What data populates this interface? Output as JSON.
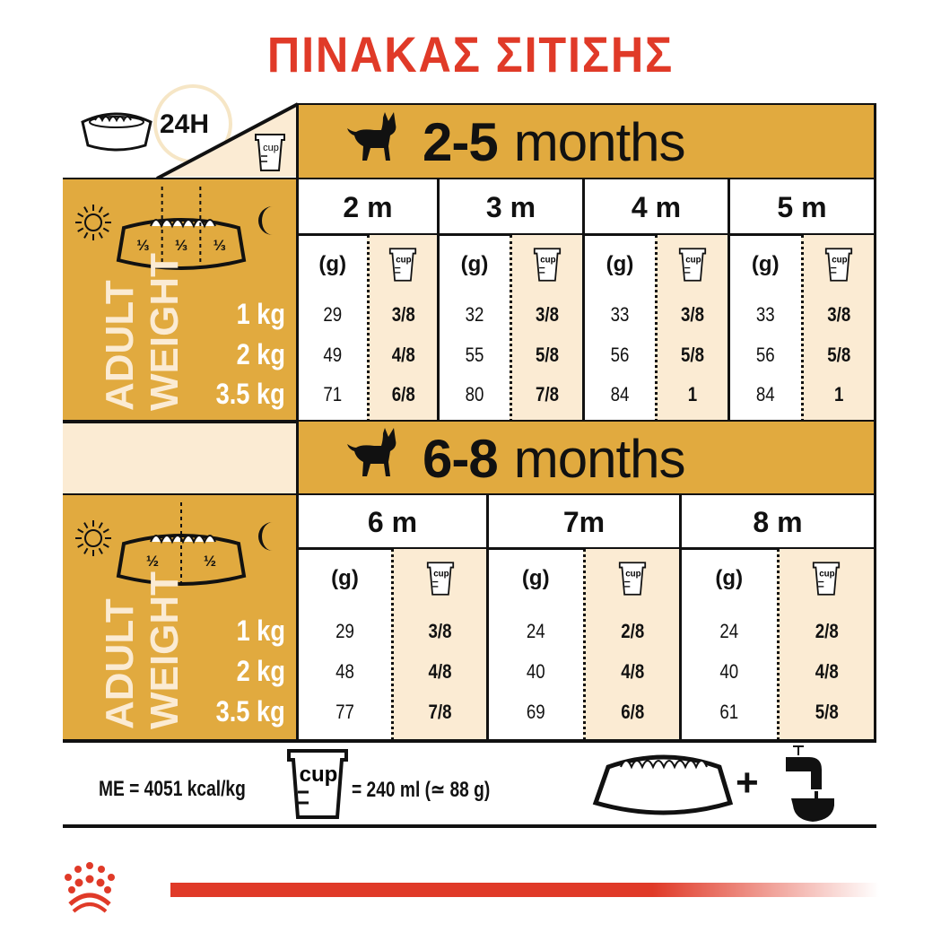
{
  "title": "ΠΙΝΑΚΑΣ ΣΙΤΙΣΗΣ",
  "colors": {
    "brand_red": "#E03A28",
    "gold": "#E1AA3F",
    "cream": "#FBEBD3"
  },
  "corner": {
    "label": "24H",
    "cup_icon_text": "cup"
  },
  "unit_grams": "(g)",
  "weight_axis": {
    "line1": "ADULT",
    "line2": "WEIGHT",
    "weights": [
      "1 kg",
      "2 kg",
      "3.5 kg"
    ]
  },
  "sections": [
    {
      "title_num": "2-5",
      "title_word": "months",
      "bowl_split": [
        "⅓",
        "⅓",
        "⅓"
      ],
      "columns": [
        {
          "label": "2 m",
          "grams": [
            "29",
            "49",
            "71"
          ],
          "cups": [
            "3/8",
            "4/8",
            "6/8"
          ]
        },
        {
          "label": "3 m",
          "grams": [
            "32",
            "55",
            "80"
          ],
          "cups": [
            "3/8",
            "5/8",
            "7/8"
          ]
        },
        {
          "label": "4 m",
          "grams": [
            "33",
            "56",
            "84"
          ],
          "cups": [
            "3/8",
            "5/8",
            "1"
          ]
        },
        {
          "label": "5 m",
          "grams": [
            "33",
            "56",
            "84"
          ],
          "cups": [
            "3/8",
            "5/8",
            "1"
          ]
        }
      ]
    },
    {
      "title_num": "6-8",
      "title_word": "months",
      "bowl_split": [
        "½",
        "½"
      ],
      "columns": [
        {
          "label": "6 m",
          "grams": [
            "29",
            "48",
            "77"
          ],
          "cups": [
            "3/8",
            "4/8",
            "7/8"
          ]
        },
        {
          "label": "7m",
          "grams": [
            "24",
            "40",
            "69"
          ],
          "cups": [
            "2/8",
            "4/8",
            "6/8"
          ]
        },
        {
          "label": "8 m",
          "grams": [
            "24",
            "40",
            "61"
          ],
          "cups": [
            "2/8",
            "4/8",
            "5/8"
          ]
        }
      ]
    }
  ],
  "footer": {
    "energy": "ME = 4051 kcal/kg",
    "cup_equiv": "= 240 ml (≃ 88 g)",
    "plus": "+"
  },
  "icons": [
    "bowl-icon",
    "clock-icon",
    "cup-icon",
    "dog-icon",
    "sun-icon",
    "moon-icon",
    "tap-water-icon",
    "royal-canin-crown-icon"
  ]
}
